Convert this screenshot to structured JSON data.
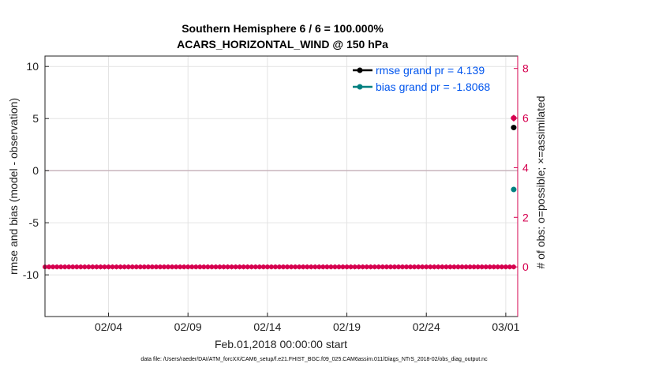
{
  "chart_data": {
    "type": "scatter",
    "title": "Southern Hemisphere 6 / 6 = 100.000%",
    "subtitle": "ACARS_HORIZONTAL_WIND @ 150 hPa",
    "xlabel": "Feb.01,2018 00:00:00 start",
    "ylabel": "rmse and bias (model - observation)",
    "ylabel_right": "# of obs: o=possible; ×=assimilated",
    "xlim": [
      "2018-01-31",
      "2018-03-01 18:00"
    ],
    "ylim": [
      -14,
      11
    ],
    "ylim_right": [
      -2,
      8.5
    ],
    "x_ticks": [
      "02/04",
      "02/09",
      "02/14",
      "02/19",
      "02/24",
      "03/01"
    ],
    "x_tick_dates": [
      "2018-02-04",
      "2018-02-09",
      "2018-02-14",
      "2018-02-19",
      "2018-02-24",
      "2018-03-01"
    ],
    "y_ticks": [
      "-10",
      "-5",
      "0",
      "5",
      "10"
    ],
    "y_ticks_right": [
      "0",
      "2",
      "4",
      "6",
      "8"
    ],
    "grid": true,
    "legend_position": "top-right",
    "zero_line": 0,
    "series": [
      {
        "name": "rmse grand pr = 4.139",
        "color": "#000000",
        "points": [
          {
            "x": "2018-03-01 12:00",
            "y": 4.139
          }
        ]
      },
      {
        "name": "bias grand pr = -1.8068",
        "color": "#008080",
        "points": [
          {
            "x": "2018-03-01 12:00",
            "y": -1.8068
          }
        ]
      }
    ],
    "obs_count": {
      "axis": "right",
      "color": "#d6004f",
      "start": "2018-01-31",
      "end": "2018-03-01 12:00",
      "interval_hours": 6,
      "possible_value": 0,
      "assimilated_value": 0,
      "final_point": {
        "x": "2018-03-01 12:00",
        "possible": 6,
        "assimilated": 6
      }
    },
    "legend_text_color": "#0055ee"
  },
  "footnote": "data file: /Users/raeder/DAI/ATM_forcXX/CAM6_setup/f.e21.FHIST_BGC.f09_025.CAM6assim.011/Diags_NTrS_2018-02/obs_diag_output.nc"
}
